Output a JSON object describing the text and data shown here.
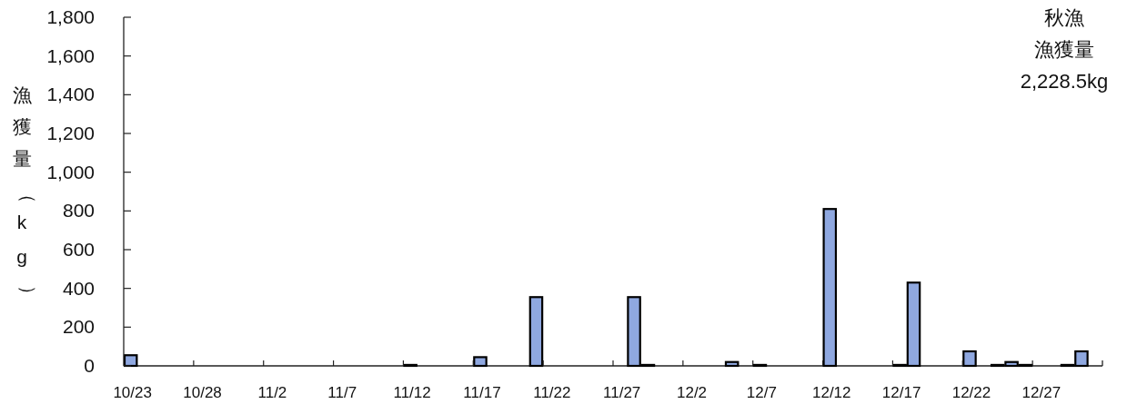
{
  "chart_data": {
    "type": "bar",
    "ylabel": "漁獲量（kg）",
    "annotations": [
      "秋漁",
      "漁獲量",
      "2,228.5kg"
    ],
    "categories": [
      "10/23",
      null,
      null,
      null,
      null,
      "10/28",
      null,
      null,
      null,
      null,
      "11/2",
      null,
      null,
      null,
      null,
      "11/7",
      null,
      null,
      null,
      null,
      "11/12",
      null,
      null,
      null,
      null,
      "11/17",
      null,
      null,
      null,
      null,
      "11/22",
      null,
      null,
      null,
      null,
      "11/27",
      null,
      null,
      null,
      null,
      "12/2",
      null,
      null,
      null,
      null,
      "12/7",
      null,
      null,
      null,
      null,
      "12/12",
      null,
      null,
      null,
      null,
      "12/17",
      null,
      null,
      null,
      null,
      "12/22",
      null,
      null,
      null,
      null,
      "12/27",
      null,
      null,
      null,
      null
    ],
    "values": [
      55,
      null,
      null,
      null,
      null,
      null,
      null,
      null,
      null,
      null,
      null,
      null,
      null,
      null,
      null,
      null,
      null,
      null,
      null,
      null,
      5,
      null,
      null,
      null,
      null,
      45,
      null,
      null,
      null,
      355,
      null,
      null,
      null,
      null,
      null,
      null,
      355,
      5,
      null,
      null,
      null,
      null,
      null,
      20,
      null,
      5,
      null,
      null,
      null,
      null,
      810,
      null,
      null,
      null,
      null,
      5,
      430,
      null,
      null,
      null,
      75,
      null,
      5,
      20,
      5,
      null,
      null,
      5,
      75,
      null
    ],
    "color": "#8fa8e0",
    "ylim": [
      0,
      1800
    ],
    "yticks": [
      0,
      {
        "value": 200,
        "label": "200"
      },
      {
        "value": 400,
        "label": "400"
      },
      {
        "value": 600,
        "label": "600"
      },
      {
        "value": 800,
        "label": "800"
      },
      {
        "value": 1000,
        "label": "1,000"
      },
      {
        "value": 1200,
        "label": "1,200"
      },
      {
        "value": 1400,
        "label": "1,400"
      },
      {
        "value": 1600,
        "label": "1,600"
      },
      {
        "value": 1800,
        "label": "1,800"
      }
    ],
    "grid": false
  }
}
